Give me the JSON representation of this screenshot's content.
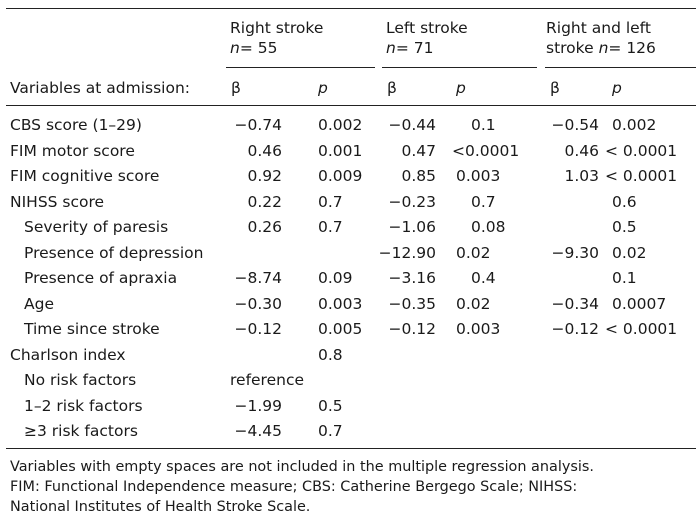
{
  "header": {
    "group1_line1": "Right stroke",
    "group1_n": "= 55",
    "group2_line1": "Left stroke",
    "group2_n": "= 71",
    "group3_line1": "Right and left",
    "group3_line2_prefix": "stroke",
    "group3_n": "= 126",
    "n_symbol": "n",
    "variables_label": "Variables at admission:",
    "beta": "β",
    "p": "p"
  },
  "rows": [
    {
      "label": "CBS score (1–29)",
      "b1": "−0.74",
      "p1": "0.002",
      "b2": "−0.44",
      "p2": "0.1",
      "b3": "−0.54",
      "p3": "0.002"
    },
    {
      "label": "FIM motor score",
      "b1": "0.46",
      "p1": "0.001",
      "b2": "0.47",
      "p2": "<0.0001",
      "b3": "0.46",
      "p3": "< 0.0001"
    },
    {
      "label": "FIM cognitive score",
      "b1": "0.92",
      "p1": "0.009",
      "b2": "0.85",
      "p2": "0.003",
      "b3": "1.03",
      "p3": "< 0.0001"
    },
    {
      "label": "NIHSS score",
      "b1": "0.22",
      "p1": "0.7",
      "b2": "−0.23",
      "p2": "0.7",
      "b3": "",
      "p3": "0.6"
    },
    {
      "label": "Severity of paresis",
      "b1": "0.26",
      "p1": "0.7",
      "b2": "−1.06",
      "p2": "0.08",
      "b3": "",
      "p3": "0.5"
    },
    {
      "label": "Presence of depression",
      "b1": "",
      "p1": "",
      "b2": "−12.90",
      "p2": "0.02",
      "b3": "−9.30",
      "p3": "0.02"
    },
    {
      "label": "Presence of apraxia",
      "b1": "−8.74",
      "p1": "0.09",
      "b2": "−3.16",
      "p2": "0.4",
      "b3": "",
      "p3": "0.1"
    },
    {
      "label": "Age",
      "b1": "−0.30",
      "p1": "0.003",
      "b2": "−0.35",
      "p2": "0.02",
      "b3": "−0.34",
      "p3": "0.0007"
    },
    {
      "label": "Time since stroke",
      "b1": "−0.12",
      "p1": "0.005",
      "b2": "−0.12",
      "p2": "0.003",
      "b3": "−0.12",
      "p3": "< 0.0001"
    },
    {
      "label": "Charlson index",
      "b1": "",
      "p1": "0.8",
      "b2": "",
      "p2": "",
      "b3": "",
      "p3": ""
    },
    {
      "label": "No risk factors",
      "b1": "reference",
      "p1": "",
      "b2": "",
      "p2": "",
      "b3": "",
      "p3": ""
    },
    {
      "label": "1–2 risk factors",
      "b1": "−1.99",
      "p1": "0.5",
      "b2": "",
      "p2": "",
      "b3": "",
      "p3": ""
    },
    {
      "label": "≥3 risk factors",
      "b1": "−4.45",
      "p1": "0.7",
      "b2": "",
      "p2": "",
      "b3": "",
      "p3": ""
    }
  ],
  "footnote": {
    "line1": "Variables with empty spaces are not included in the multiple regression analysis.",
    "line2": "FIM: Functional Independence measure; CBS: Catherine Bergego Scale; NIHSS:",
    "line3": "National Institutes of Health Stroke Scale."
  }
}
